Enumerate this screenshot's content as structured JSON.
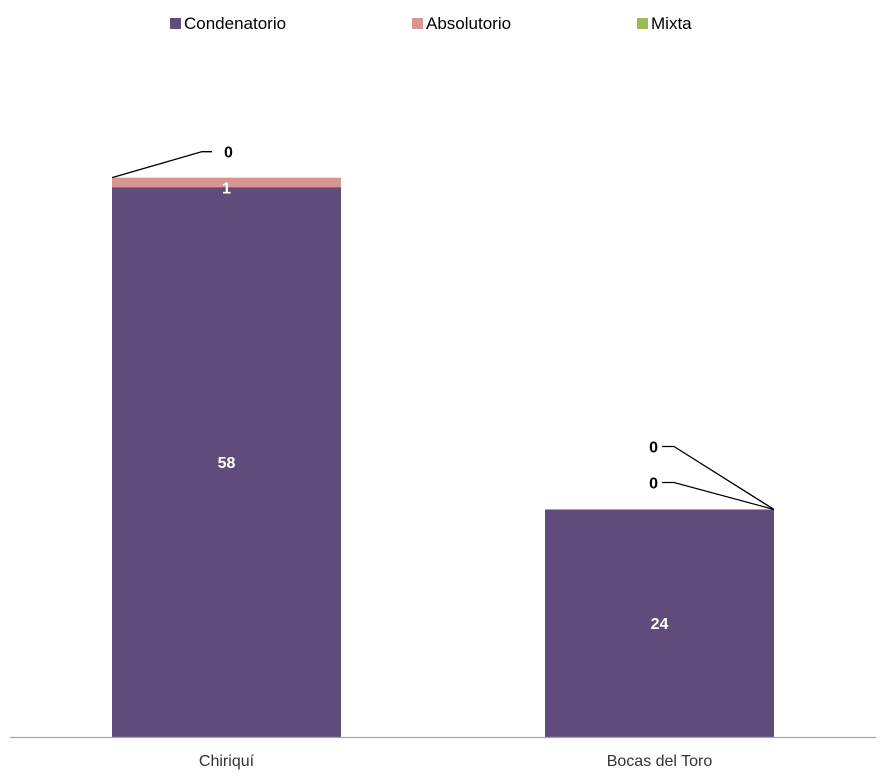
{
  "chart_data": {
    "type": "bar",
    "stacked": true,
    "categories": [
      "Chiriquí",
      "Bocas del Toro"
    ],
    "series": [
      {
        "name": "Condenatorio",
        "values": [
          58,
          24
        ],
        "color": "#604C7A"
      },
      {
        "name": "Absolutorio",
        "values": [
          1,
          0
        ],
        "color": "#D99594"
      },
      {
        "name": "Mixta",
        "values": [
          0,
          0
        ],
        "color": "#9BBB59"
      }
    ],
    "data_labels": [
      [
        "58",
        "24"
      ],
      [
        "1",
        "0"
      ],
      [
        "0",
        "0"
      ]
    ],
    "title": "",
    "xlabel": "",
    "ylabel": "",
    "ylim": [
      0,
      70
    ],
    "grid": false,
    "legend_position": "top",
    "label_colors": {
      "inside": "#FFFFFF",
      "outside": "#000000"
    },
    "axis_color": "#A6A6A6"
  }
}
